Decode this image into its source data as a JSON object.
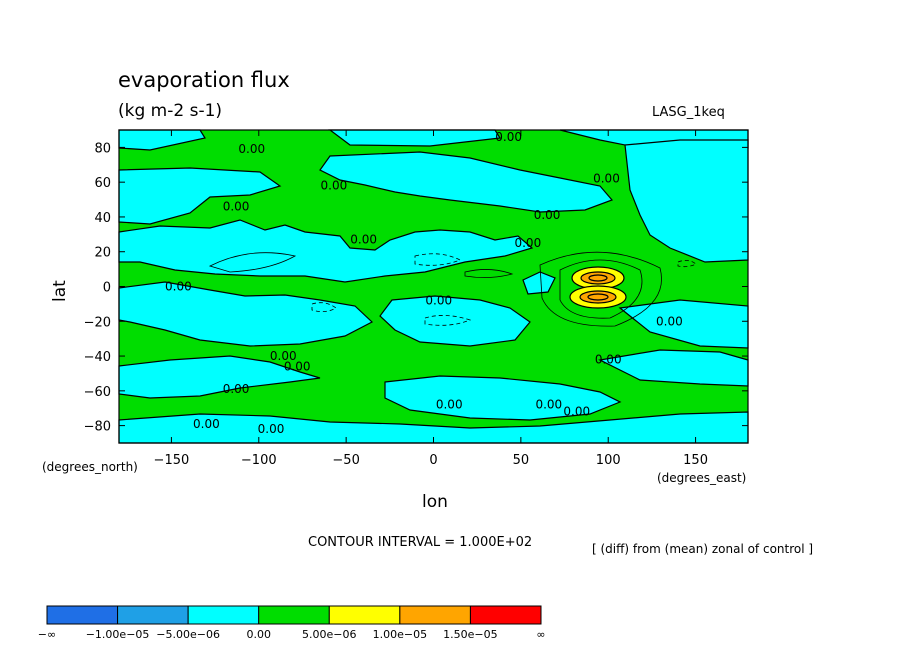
{
  "chart_data": {
    "type": "heatmap",
    "title": "evaporation flux",
    "subtitle": "(kg m-2 s-1)",
    "run_label": "LASG_1keq",
    "xlabel": "lon",
    "ylabel": "lat",
    "x_unit_label": "(degrees_east)",
    "y_unit_label": "(degrees_north)",
    "xlim": [
      -180,
      180
    ],
    "ylim": [
      -90,
      90
    ],
    "x_ticks": [
      "−150",
      "−100",
      "−50",
      "0",
      "50",
      "100",
      "150"
    ],
    "y_ticks": [
      "80",
      "60",
      "40",
      "20",
      "0",
      "−20",
      "−40",
      "−60",
      "−80"
    ],
    "contour_interval_text": "CONTOUR INTERVAL = 1.000E+02",
    "note": "[ (diff) from (mean) zonal of control ]",
    "colorbar": {
      "colors": [
        "#1f6fe6",
        "#1fa0e6",
        "#00ffff",
        "#00dd00",
        "#ffff00",
        "#ffa500",
        "#ff0000"
      ],
      "labels": [
        "−∞",
        "−1.00e−05",
        "−5.00e−06",
        "0.00",
        "5.00e−06",
        "1.00e−05",
        "1.50e−05",
        "∞"
      ]
    },
    "contour_labels": [
      {
        "text": "0.00",
        "lon": 43,
        "lat": 86
      },
      {
        "text": "0.00",
        "lon": -104,
        "lat": 79
      },
      {
        "text": "0.00",
        "lon": -57,
        "lat": 58
      },
      {
        "text": "0.00",
        "lon": 99,
        "lat": 62
      },
      {
        "text": "0.00",
        "lon": -113,
        "lat": 46
      },
      {
        "text": "0.00",
        "lon": 65,
        "lat": 41
      },
      {
        "text": "0.00",
        "lon": -40,
        "lat": 27
      },
      {
        "text": "0.00",
        "lon": 54,
        "lat": 25
      },
      {
        "text": "0.00",
        "lon": -146,
        "lat": 0
      },
      {
        "text": "0.00",
        "lon": 3,
        "lat": -8
      },
      {
        "text": "0.00",
        "lon": 135,
        "lat": -20
      },
      {
        "text": "0.00",
        "lon": -86,
        "lat": -40
      },
      {
        "text": "0.00",
        "lon": -78,
        "lat": -46
      },
      {
        "text": "0.00",
        "lon": 100,
        "lat": -42
      },
      {
        "text": "0.00",
        "lon": -113,
        "lat": -59
      },
      {
        "text": "0.00",
        "lon": 9,
        "lat": -68
      },
      {
        "text": "0.00",
        "lon": 66,
        "lat": -68
      },
      {
        "text": "0.00",
        "lon": 82,
        "lat": -72
      },
      {
        "text": "0.00",
        "lon": -130,
        "lat": -79
      },
      {
        "text": "0.00",
        "lon": -93,
        "lat": -82
      }
    ]
  }
}
